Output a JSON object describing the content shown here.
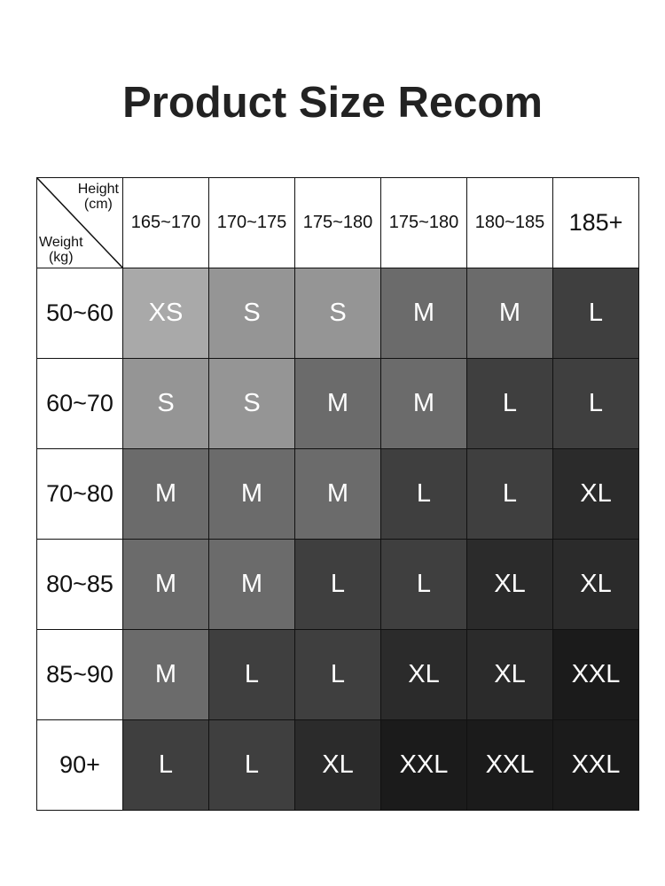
{
  "title": "Product Size Recom",
  "corner": {
    "height_label": "Height",
    "height_unit": "(cm)",
    "weight_label": "Weight",
    "weight_unit": "(kg)"
  },
  "heights": [
    "165~170",
    "170~175",
    "175~180",
    "175~180",
    "180~185",
    "185+"
  ],
  "weights": [
    "50~60",
    "60~70",
    "70~80",
    "80~85",
    "85~90",
    "90+"
  ],
  "sizes": [
    [
      "XS",
      "S",
      "S",
      "M",
      "M",
      "L"
    ],
    [
      "S",
      "S",
      "M",
      "M",
      "L",
      "L"
    ],
    [
      "M",
      "M",
      "M",
      "L",
      "L",
      "XL"
    ],
    [
      "M",
      "M",
      "L",
      "L",
      "XL",
      "XL"
    ],
    [
      "M",
      "L",
      "L",
      "XL",
      "XL",
      "XXL"
    ],
    [
      "L",
      "L",
      "XL",
      "XXL",
      "XXL",
      "XXL"
    ]
  ],
  "size_colors": {
    "XS": "#a9a9a9",
    "S": "#959595",
    "M": "#6b6b6b",
    "L": "#3f3f3f",
    "XL": "#2b2b2b",
    "XXL": "#1b1b1b"
  }
}
